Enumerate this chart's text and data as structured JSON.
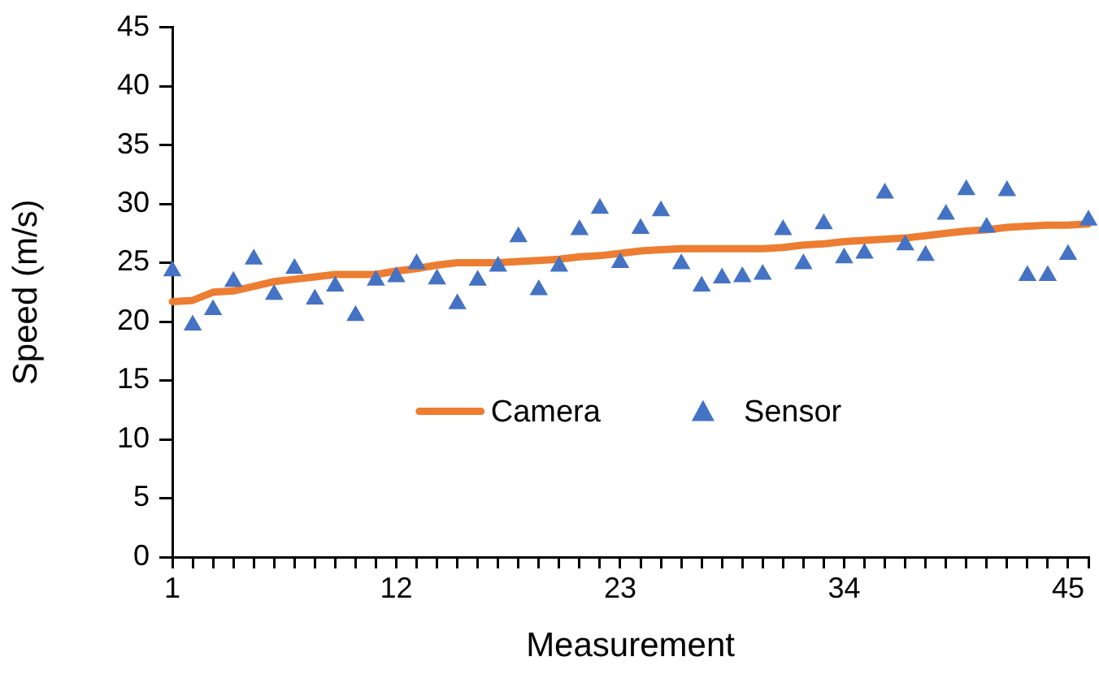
{
  "chart_data": {
    "type": "line",
    "xlabel": "Measurement",
    "ylabel": "Speed (m/s)",
    "categories": [
      "1",
      null,
      null,
      null,
      null,
      null,
      null,
      null,
      null,
      null,
      null,
      "12",
      null,
      null,
      null,
      null,
      null,
      null,
      null,
      null,
      null,
      null,
      "23",
      null,
      null,
      null,
      null,
      null,
      null,
      null,
      null,
      null,
      null,
      "34",
      null,
      null,
      null,
      null,
      null,
      null,
      null,
      null,
      null,
      null,
      "45",
      null
    ],
    "series": [
      {
        "name": "Camera",
        "color": "#ed7d31",
        "marker": "none",
        "line_style": "solid",
        "values": [
          21.7,
          21.8,
          22.5,
          22.6,
          23.0,
          23.4,
          23.6,
          23.8,
          24.0,
          24.0,
          24.0,
          24.3,
          24.5,
          24.8,
          25.0,
          25.0,
          25.0,
          25.1,
          25.2,
          25.3,
          25.5,
          25.6,
          25.8,
          26.0,
          26.1,
          26.2,
          26.2,
          26.2,
          26.2,
          26.2,
          26.3,
          26.5,
          26.6,
          26.8,
          26.9,
          27.0,
          27.1,
          27.3,
          27.5,
          27.7,
          27.8,
          28.0,
          28.1,
          28.2,
          28.2,
          28.3
        ]
      },
      {
        "name": "Sensor",
        "type": "scatter",
        "color": "#4472c4",
        "marker": "triangle",
        "values": [
          24.3,
          19.7,
          21.0,
          23.4,
          25.3,
          22.3,
          24.5,
          21.9,
          23.0,
          20.5,
          23.5,
          23.8,
          24.9,
          23.6,
          21.5,
          23.5,
          24.7,
          27.2,
          22.7,
          24.7,
          27.8,
          29.6,
          25.0,
          27.9,
          29.4,
          24.9,
          23.0,
          23.7,
          23.8,
          24.0,
          27.8,
          24.9,
          28.3,
          25.4,
          25.8,
          30.9,
          26.5,
          25.6,
          29.1,
          31.2,
          28.0,
          31.1,
          23.9,
          23.9,
          25.7,
          28.6
        ]
      }
    ],
    "ylim": [
      0,
      45
    ],
    "yticks": [
      0,
      5,
      10,
      15,
      20,
      25,
      30,
      35,
      40,
      45
    ],
    "grid": false,
    "legend": "bottom"
  }
}
